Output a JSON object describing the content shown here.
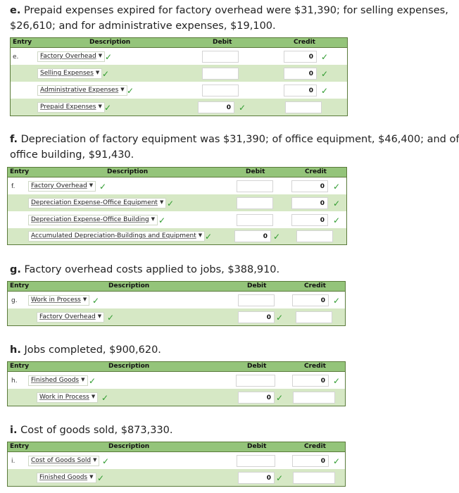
{
  "columns": {
    "entry": "Entry",
    "description": "Description",
    "debit": "Debit",
    "credit": "Credit"
  },
  "sections": {
    "e": {
      "letter": "e.",
      "prompt": "Prepaid expenses expired for factory overhead were $31,390; for selling expenses,",
      "prompt2": "$26,610; and for administrative expenses, $19,100.",
      "entry": "e.",
      "rows": [
        {
          "account": "Factory Overhead",
          "credit": "0"
        },
        {
          "account": "Selling Expenses",
          "credit": "0"
        },
        {
          "account": "Administrative Expenses",
          "credit": "0"
        },
        {
          "account": "Prepaid Expenses",
          "debit": "0"
        }
      ]
    },
    "f": {
      "letter": "f.",
      "prompt": "Depreciation of factory equipment was $31,390; of office equipment, $46,400; and of",
      "prompt2": "office building, $91,430.",
      "entry": "f.",
      "rows": [
        {
          "account": "Factory Overhead",
          "credit": "0"
        },
        {
          "account": "Depreciation Expense-Office Equipment",
          "credit": "0"
        },
        {
          "account": "Depreciation Expense-Office Building",
          "credit": "0"
        },
        {
          "account": "Accumulated Depreciation-Buildings and Equipment",
          "debit": "0"
        }
      ]
    },
    "g": {
      "letter": "g.",
      "prompt": "Factory overhead costs applied to jobs, $388,910.",
      "entry": "g.",
      "rows": [
        {
          "account": "Work in Process",
          "credit": "0"
        },
        {
          "account": "Factory Overhead",
          "debit": "0"
        }
      ]
    },
    "h": {
      "letter": "h.",
      "prompt": "Jobs completed, $900,620.",
      "entry": "h.",
      "rows": [
        {
          "account": "Finished Goods",
          "credit": "0"
        },
        {
          "account": "Work in Process",
          "debit": "0"
        }
      ]
    },
    "i": {
      "letter": "i.",
      "prompt": "Cost of goods sold, $873,330.",
      "entry": "i.",
      "rows": [
        {
          "account": "Cost of Goods Sold",
          "credit": "0"
        },
        {
          "account": "Finished Goods",
          "debit": "0"
        }
      ]
    }
  },
  "icons": {
    "dropdown": "caret-down-icon",
    "check": "checkmark-icon"
  },
  "colors": {
    "header": "#94c47a",
    "row_alt": "#d6e8c5",
    "border": "#5a7a3a",
    "check": "#2e9b2e"
  }
}
